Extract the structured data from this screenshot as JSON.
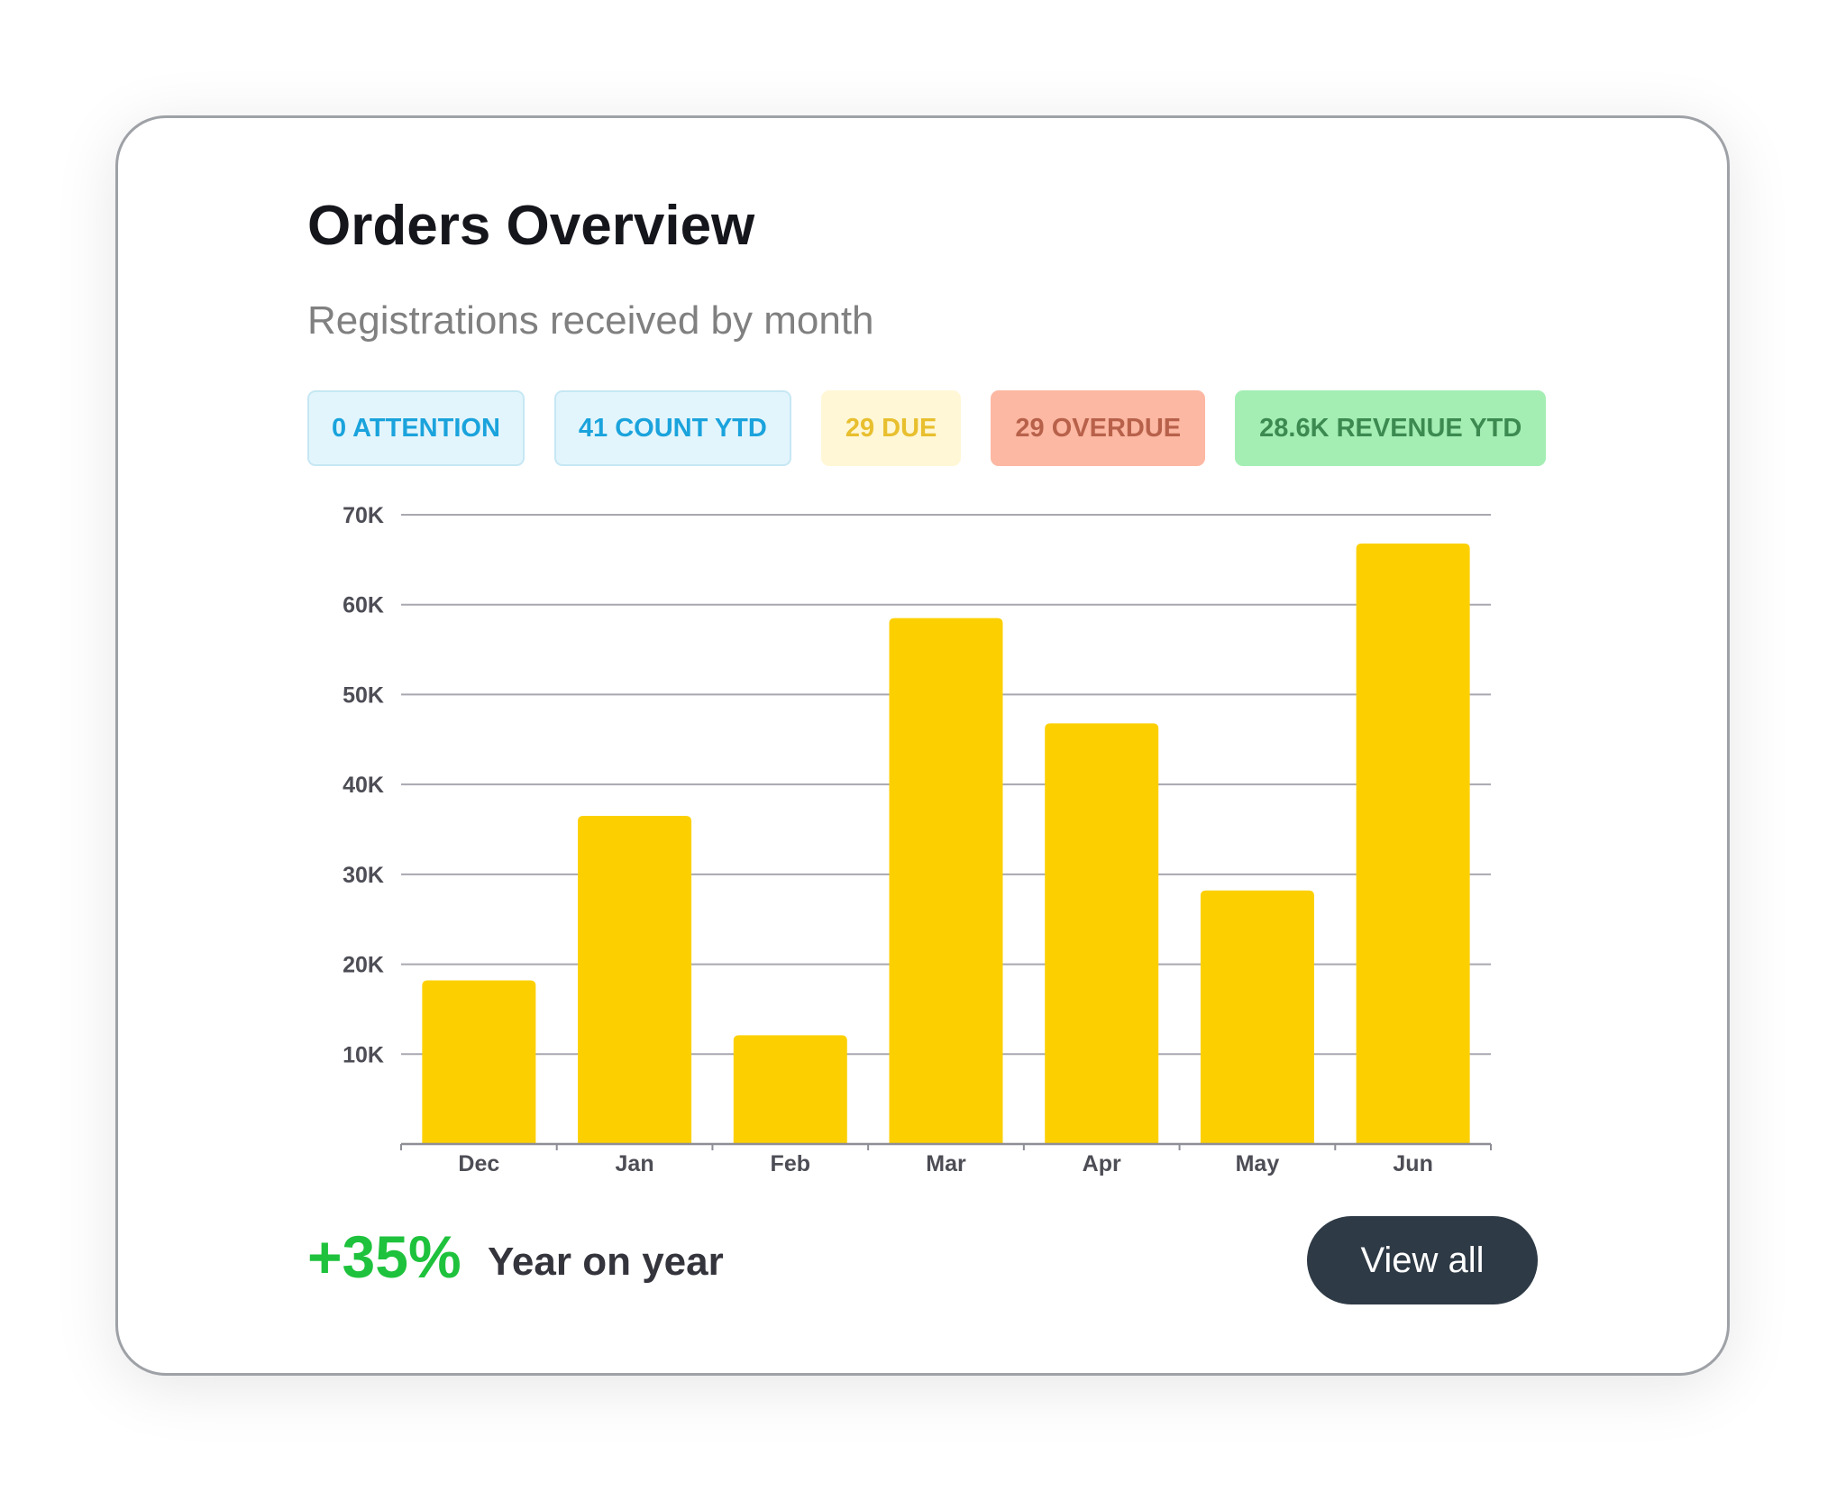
{
  "card": {
    "title": "Orders Overview",
    "subtitle": "Registrations received by month"
  },
  "badges": [
    {
      "label": "0 ATTENTION",
      "bg": "#e3f5fc",
      "border": "#c6e7f4",
      "color": "#1aa3dc"
    },
    {
      "label": "41 COUNT YTD",
      "bg": "#e3f5fc",
      "border": "#c6e7f4",
      "color": "#1aa3dc"
    },
    {
      "label": "29 DUE",
      "bg": "#fff7d6",
      "border": "#fff7d6",
      "color": "#e8bf2e"
    },
    {
      "label": "29 OVERDUE",
      "bg": "#fcb8a3",
      "border": "#fcb8a3",
      "color": "#b8614a"
    },
    {
      "label": "28.6K REVENUE YTD",
      "bg": "#a4eeb4",
      "border": "#a4eeb4",
      "color": "#3c8a50"
    }
  ],
  "chart_data": {
    "type": "bar",
    "categories": [
      "Dec",
      "Jan",
      "Feb",
      "Mar",
      "Apr",
      "May",
      "Jun"
    ],
    "values": [
      18200,
      36500,
      12100,
      58500,
      46800,
      28200,
      66800
    ],
    "yticks": [
      10000,
      20000,
      30000,
      40000,
      50000,
      60000,
      70000
    ],
    "ytick_labels": [
      "10K",
      "20K",
      "30K",
      "40K",
      "50K",
      "60K",
      "70K"
    ],
    "ylim": [
      0,
      70000
    ],
    "grid": true,
    "bar_color": "#fcd000",
    "grid_color": "#a8a8b0",
    "axis_color": "#8e8e96",
    "label_color": "#4d4d56"
  },
  "footer": {
    "change": "+35%",
    "change_color": "#1ec23c",
    "label": "Year on year",
    "button": "View all"
  }
}
